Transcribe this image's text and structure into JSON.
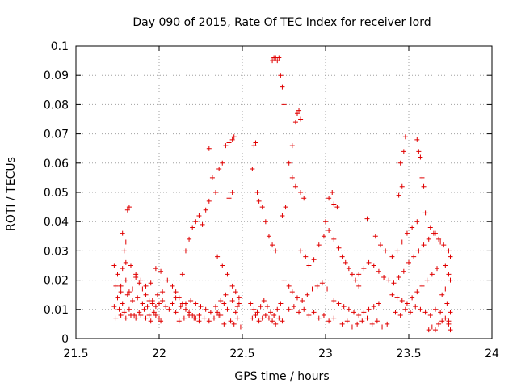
{
  "chart_data": {
    "type": "scatter",
    "title": "Day 090 of 2015, Rate Of TEC Index for receiver lord",
    "xlabel": "GPS time / hours",
    "ylabel": "ROTI / TECUs",
    "xlim": [
      21.5,
      24
    ],
    "ylim": [
      0,
      0.1
    ],
    "grid": true,
    "marker": "plus",
    "color": "#e00000",
    "x_ticks": [
      "21.5",
      "22",
      "22.5",
      "23",
      "23.5",
      "24"
    ],
    "y_ticks": [
      "0",
      "0.01",
      "0.02",
      "0.03",
      "0.04",
      "0.05",
      "0.06",
      "0.07",
      "0.08",
      "0.09",
      "0.1"
    ],
    "points": [
      [
        21.73,
        0.025
      ],
      [
        21.75,
        0.022
      ],
      [
        21.77,
        0.018
      ],
      [
        21.78,
        0.024
      ],
      [
        21.8,
        0.02
      ],
      [
        21.82,
        0.016
      ],
      [
        21.84,
        0.013
      ],
      [
        21.86,
        0.021
      ],
      [
        21.88,
        0.019
      ],
      [
        21.9,
        0.017
      ],
      [
        21.92,
        0.015
      ],
      [
        21.94,
        0.013
      ],
      [
        21.96,
        0.012
      ],
      [
        21.98,
        0.011
      ],
      [
        22.0,
        0.012
      ],
      [
        22.02,
        0.013
      ],
      [
        22.04,
        0.011
      ],
      [
        22.06,
        0.01
      ],
      [
        22.08,
        0.012
      ],
      [
        22.1,
        0.014
      ],
      [
        21.73,
        0.011
      ],
      [
        21.76,
        0.01
      ],
      [
        21.79,
        0.009
      ],
      [
        21.82,
        0.01
      ],
      [
        21.85,
        0.008
      ],
      [
        21.88,
        0.009
      ],
      [
        21.91,
        0.01
      ],
      [
        21.94,
        0.008
      ],
      [
        21.97,
        0.009
      ],
      [
        22.0,
        0.007
      ],
      [
        21.74,
        0.007
      ],
      [
        21.77,
        0.008
      ],
      [
        21.8,
        0.007
      ],
      [
        21.83,
        0.008
      ],
      [
        21.86,
        0.007
      ],
      [
        21.89,
        0.008
      ],
      [
        21.92,
        0.007
      ],
      [
        21.95,
        0.006
      ],
      [
        21.98,
        0.008
      ],
      [
        22.01,
        0.006
      ],
      [
        21.75,
        0.014
      ],
      [
        21.78,
        0.012
      ],
      [
        21.81,
        0.015
      ],
      [
        21.84,
        0.017
      ],
      [
        21.87,
        0.014
      ],
      [
        21.9,
        0.012
      ],
      [
        21.93,
        0.011
      ],
      [
        21.96,
        0.013
      ],
      [
        21.99,
        0.015
      ],
      [
        22.02,
        0.016
      ],
      [
        21.74,
        0.018
      ],
      [
        21.77,
        0.016
      ],
      [
        21.8,
        0.026
      ],
      [
        21.83,
        0.025
      ],
      [
        21.86,
        0.022
      ],
      [
        21.89,
        0.02
      ],
      [
        21.92,
        0.018
      ],
      [
        21.95,
        0.019
      ],
      [
        21.98,
        0.024
      ],
      [
        22.01,
        0.023
      ],
      [
        21.79,
        0.03
      ],
      [
        21.8,
        0.033
      ],
      [
        21.81,
        0.044
      ],
      [
        21.82,
        0.045
      ],
      [
        21.78,
        0.036
      ],
      [
        22.05,
        0.02
      ],
      [
        22.08,
        0.018
      ],
      [
        22.1,
        0.016
      ],
      [
        22.12,
        0.014
      ],
      [
        22.14,
        0.012
      ],
      [
        22.16,
        0.01
      ],
      [
        22.18,
        0.009
      ],
      [
        22.2,
        0.008
      ],
      [
        22.22,
        0.007
      ],
      [
        22.24,
        0.006
      ],
      [
        22.1,
        0.009
      ],
      [
        22.13,
        0.011
      ],
      [
        22.16,
        0.012
      ],
      [
        22.19,
        0.013
      ],
      [
        22.22,
        0.012
      ],
      [
        22.25,
        0.011
      ],
      [
        22.28,
        0.01
      ],
      [
        22.31,
        0.009
      ],
      [
        22.34,
        0.011
      ],
      [
        22.37,
        0.013
      ],
      [
        22.12,
        0.006
      ],
      [
        22.15,
        0.007
      ],
      [
        22.18,
        0.008
      ],
      [
        22.21,
        0.007
      ],
      [
        22.24,
        0.008
      ],
      [
        22.27,
        0.007
      ],
      [
        22.3,
        0.006
      ],
      [
        22.33,
        0.007
      ],
      [
        22.36,
        0.008
      ],
      [
        22.39,
        0.005
      ],
      [
        22.14,
        0.022
      ],
      [
        22.16,
        0.03
      ],
      [
        22.18,
        0.034
      ],
      [
        22.2,
        0.038
      ],
      [
        22.22,
        0.04
      ],
      [
        22.24,
        0.042
      ],
      [
        22.26,
        0.039
      ],
      [
        22.28,
        0.044
      ],
      [
        22.3,
        0.047
      ],
      [
        22.32,
        0.055
      ],
      [
        22.3,
        0.065
      ],
      [
        22.4,
        0.066
      ],
      [
        22.42,
        0.067
      ],
      [
        22.44,
        0.068
      ],
      [
        22.45,
        0.069
      ],
      [
        22.38,
        0.06
      ],
      [
        22.36,
        0.058
      ],
      [
        22.34,
        0.05
      ],
      [
        22.42,
        0.048
      ],
      [
        22.44,
        0.05
      ],
      [
        22.35,
        0.028
      ],
      [
        22.38,
        0.025
      ],
      [
        22.41,
        0.022
      ],
      [
        22.44,
        0.018
      ],
      [
        22.46,
        0.016
      ],
      [
        22.48,
        0.014
      ],
      [
        22.4,
        0.015
      ],
      [
        22.42,
        0.017
      ],
      [
        22.44,
        0.013
      ],
      [
        22.47,
        0.011
      ],
      [
        22.43,
        0.006
      ],
      [
        22.45,
        0.005
      ],
      [
        22.47,
        0.007
      ],
      [
        22.49,
        0.004
      ],
      [
        22.35,
        0.009
      ],
      [
        22.37,
        0.008
      ],
      [
        22.39,
        0.012
      ],
      [
        22.41,
        0.01
      ],
      [
        22.46,
        0.009
      ],
      [
        22.48,
        0.012
      ],
      [
        22.55,
        0.012
      ],
      [
        22.57,
        0.01
      ],
      [
        22.59,
        0.009
      ],
      [
        22.61,
        0.011
      ],
      [
        22.63,
        0.013
      ],
      [
        22.65,
        0.011
      ],
      [
        22.67,
        0.009
      ],
      [
        22.69,
        0.008
      ],
      [
        22.71,
        0.01
      ],
      [
        22.73,
        0.012
      ],
      [
        22.56,
        0.007
      ],
      [
        22.58,
        0.008
      ],
      [
        22.6,
        0.006
      ],
      [
        22.62,
        0.007
      ],
      [
        22.64,
        0.008
      ],
      [
        22.66,
        0.007
      ],
      [
        22.68,
        0.006
      ],
      [
        22.7,
        0.005
      ],
      [
        22.72,
        0.007
      ],
      [
        22.74,
        0.006
      ],
      [
        22.56,
        0.058
      ],
      [
        22.57,
        0.066
      ],
      [
        22.58,
        0.067
      ],
      [
        22.59,
        0.05
      ],
      [
        22.6,
        0.047
      ],
      [
        22.62,
        0.045
      ],
      [
        22.64,
        0.04
      ],
      [
        22.66,
        0.035
      ],
      [
        22.68,
        0.032
      ],
      [
        22.7,
        0.03
      ],
      [
        22.68,
        0.095
      ],
      [
        22.69,
        0.096
      ],
      [
        22.7,
        0.096
      ],
      [
        22.71,
        0.095
      ],
      [
        22.72,
        0.096
      ],
      [
        22.73,
        0.09
      ],
      [
        22.74,
        0.086
      ],
      [
        22.75,
        0.08
      ],
      [
        22.8,
        0.066
      ],
      [
        22.82,
        0.074
      ],
      [
        22.83,
        0.077
      ],
      [
        22.84,
        0.078
      ],
      [
        22.85,
        0.075
      ],
      [
        22.8,
        0.055
      ],
      [
        22.82,
        0.052
      ],
      [
        22.85,
        0.05
      ],
      [
        22.87,
        0.048
      ],
      [
        22.78,
        0.06
      ],
      [
        22.76,
        0.045
      ],
      [
        22.74,
        0.042
      ],
      [
        22.75,
        0.02
      ],
      [
        22.78,
        0.018
      ],
      [
        22.8,
        0.016
      ],
      [
        22.83,
        0.014
      ],
      [
        22.86,
        0.013
      ],
      [
        22.89,
        0.015
      ],
      [
        22.92,
        0.017
      ],
      [
        22.95,
        0.018
      ],
      [
        22.98,
        0.019
      ],
      [
        23.01,
        0.017
      ],
      [
        22.78,
        0.01
      ],
      [
        22.81,
        0.011
      ],
      [
        22.84,
        0.009
      ],
      [
        22.87,
        0.01
      ],
      [
        22.9,
        0.008
      ],
      [
        22.93,
        0.009
      ],
      [
        22.96,
        0.007
      ],
      [
        22.99,
        0.008
      ],
      [
        23.02,
        0.006
      ],
      [
        23.05,
        0.007
      ],
      [
        22.85,
        0.03
      ],
      [
        22.88,
        0.028
      ],
      [
        22.9,
        0.025
      ],
      [
        22.93,
        0.027
      ],
      [
        22.96,
        0.032
      ],
      [
        22.99,
        0.035
      ],
      [
        23.02,
        0.048
      ],
      [
        23.04,
        0.05
      ],
      [
        23.05,
        0.046
      ],
      [
        23.07,
        0.045
      ],
      [
        23.0,
        0.04
      ],
      [
        23.02,
        0.037
      ],
      [
        23.05,
        0.034
      ],
      [
        23.08,
        0.031
      ],
      [
        23.1,
        0.028
      ],
      [
        23.12,
        0.026
      ],
      [
        23.14,
        0.024
      ],
      [
        23.16,
        0.022
      ],
      [
        23.18,
        0.02
      ],
      [
        23.2,
        0.018
      ],
      [
        23.05,
        0.013
      ],
      [
        23.08,
        0.012
      ],
      [
        23.11,
        0.011
      ],
      [
        23.14,
        0.01
      ],
      [
        23.17,
        0.009
      ],
      [
        23.2,
        0.008
      ],
      [
        23.23,
        0.009
      ],
      [
        23.26,
        0.01
      ],
      [
        23.29,
        0.011
      ],
      [
        23.32,
        0.012
      ],
      [
        23.1,
        0.005
      ],
      [
        23.13,
        0.006
      ],
      [
        23.16,
        0.004
      ],
      [
        23.19,
        0.005
      ],
      [
        23.22,
        0.006
      ],
      [
        23.25,
        0.007
      ],
      [
        23.28,
        0.005
      ],
      [
        23.31,
        0.006
      ],
      [
        23.34,
        0.004
      ],
      [
        23.37,
        0.005
      ],
      [
        23.2,
        0.022
      ],
      [
        23.23,
        0.024
      ],
      [
        23.26,
        0.026
      ],
      [
        23.29,
        0.025
      ],
      [
        23.32,
        0.023
      ],
      [
        23.35,
        0.021
      ],
      [
        23.38,
        0.02
      ],
      [
        23.41,
        0.019
      ],
      [
        23.44,
        0.021
      ],
      [
        23.47,
        0.023
      ],
      [
        23.25,
        0.041
      ],
      [
        23.3,
        0.035
      ],
      [
        23.33,
        0.032
      ],
      [
        23.36,
        0.03
      ],
      [
        23.4,
        0.028
      ],
      [
        23.43,
        0.03
      ],
      [
        23.46,
        0.033
      ],
      [
        23.49,
        0.036
      ],
      [
        23.52,
        0.038
      ],
      [
        23.55,
        0.04
      ],
      [
        23.45,
        0.06
      ],
      [
        23.47,
        0.064
      ],
      [
        23.48,
        0.069
      ],
      [
        23.44,
        0.049
      ],
      [
        23.46,
        0.052
      ],
      [
        23.55,
        0.068
      ],
      [
        23.56,
        0.064
      ],
      [
        23.57,
        0.062
      ],
      [
        23.58,
        0.055
      ],
      [
        23.59,
        0.052
      ],
      [
        23.4,
        0.015
      ],
      [
        23.43,
        0.014
      ],
      [
        23.46,
        0.013
      ],
      [
        23.49,
        0.012
      ],
      [
        23.52,
        0.014
      ],
      [
        23.55,
        0.016
      ],
      [
        23.58,
        0.018
      ],
      [
        23.61,
        0.02
      ],
      [
        23.64,
        0.022
      ],
      [
        23.67,
        0.024
      ],
      [
        23.42,
        0.009
      ],
      [
        23.45,
        0.008
      ],
      [
        23.48,
        0.01
      ],
      [
        23.51,
        0.009
      ],
      [
        23.54,
        0.011
      ],
      [
        23.57,
        0.01
      ],
      [
        23.6,
        0.009
      ],
      [
        23.63,
        0.008
      ],
      [
        23.66,
        0.01
      ],
      [
        23.69,
        0.009
      ],
      [
        23.5,
        0.026
      ],
      [
        23.53,
        0.028
      ],
      [
        23.56,
        0.03
      ],
      [
        23.59,
        0.032
      ],
      [
        23.62,
        0.034
      ],
      [
        23.65,
        0.036
      ],
      [
        23.68,
        0.034
      ],
      [
        23.71,
        0.032
      ],
      [
        23.74,
        0.03
      ],
      [
        23.75,
        0.028
      ],
      [
        23.6,
        0.043
      ],
      [
        23.63,
        0.038
      ],
      [
        23.66,
        0.036
      ],
      [
        23.69,
        0.033
      ],
      [
        23.72,
        0.025
      ],
      [
        23.74,
        0.022
      ],
      [
        23.75,
        0.02
      ],
      [
        23.73,
        0.012
      ],
      [
        23.75,
        0.009
      ],
      [
        23.74,
        0.006
      ],
      [
        23.62,
        0.003
      ],
      [
        23.64,
        0.004
      ],
      [
        23.66,
        0.003
      ],
      [
        23.68,
        0.005
      ],
      [
        23.7,
        0.006
      ],
      [
        23.72,
        0.007
      ],
      [
        23.74,
        0.005
      ],
      [
        23.75,
        0.003
      ],
      [
        23.7,
        0.015
      ],
      [
        23.72,
        0.017
      ]
    ]
  }
}
